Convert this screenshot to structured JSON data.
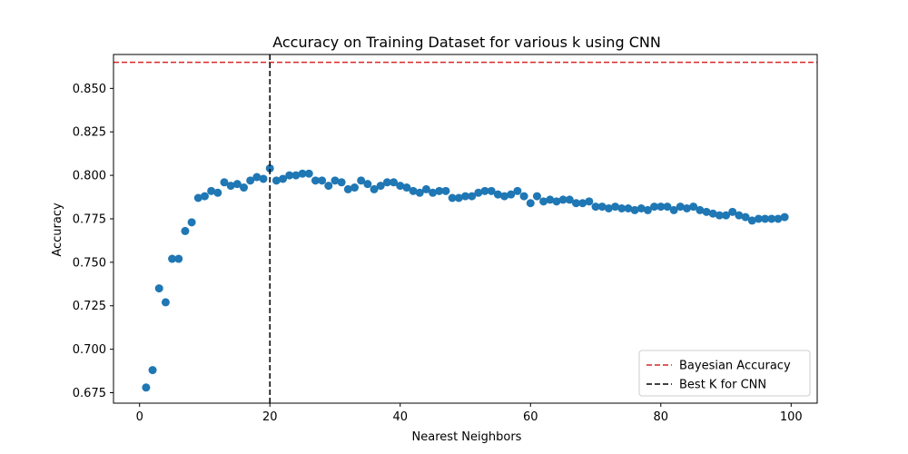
{
  "chart_data": {
    "type": "scatter",
    "title": "Accuracy on Training Dataset for various k using CNN",
    "xlabel": "Nearest Neighbors",
    "ylabel": "Accuracy",
    "xlim": [
      -4,
      104
    ],
    "ylim": [
      0.669,
      0.8695
    ],
    "xticks": [
      0,
      20,
      40,
      60,
      80,
      100
    ],
    "yticks": [
      0.675,
      0.7,
      0.725,
      0.75,
      0.775,
      0.8,
      0.825,
      0.85
    ],
    "ytick_labels": [
      "0.675",
      "0.700",
      "0.725",
      "0.750",
      "0.775",
      "0.800",
      "0.825",
      "0.850"
    ],
    "grid": false,
    "legend_position": "lower right",
    "series": [
      {
        "color": "#1f77b4",
        "x": [
          1,
          2,
          3,
          4,
          5,
          6,
          7,
          8,
          9,
          10,
          11,
          12,
          13,
          14,
          15,
          16,
          17,
          18,
          19,
          20,
          21,
          22,
          23,
          24,
          25,
          26,
          27,
          28,
          29,
          30,
          31,
          32,
          33,
          34,
          35,
          36,
          37,
          38,
          39,
          40,
          41,
          42,
          43,
          44,
          45,
          46,
          47,
          48,
          49,
          50,
          51,
          52,
          53,
          54,
          55,
          56,
          57,
          58,
          59,
          60,
          61,
          62,
          63,
          64,
          65,
          66,
          67,
          68,
          69,
          70,
          71,
          72,
          73,
          74,
          75,
          76,
          77,
          78,
          79,
          80,
          81,
          82,
          83,
          84,
          85,
          86,
          87,
          88,
          89,
          90,
          91,
          92,
          93,
          94,
          95,
          96,
          97,
          98,
          99
        ],
        "y": [
          0.678,
          0.688,
          0.735,
          0.727,
          0.752,
          0.752,
          0.768,
          0.773,
          0.787,
          0.788,
          0.791,
          0.79,
          0.796,
          0.794,
          0.795,
          0.793,
          0.797,
          0.799,
          0.798,
          0.804,
          0.797,
          0.798,
          0.8,
          0.8,
          0.801,
          0.801,
          0.797,
          0.797,
          0.794,
          0.797,
          0.796,
          0.792,
          0.793,
          0.797,
          0.795,
          0.792,
          0.794,
          0.796,
          0.796,
          0.794,
          0.793,
          0.791,
          0.79,
          0.792,
          0.79,
          0.791,
          0.791,
          0.787,
          0.787,
          0.788,
          0.788,
          0.79,
          0.791,
          0.791,
          0.789,
          0.788,
          0.789,
          0.791,
          0.788,
          0.784,
          0.788,
          0.785,
          0.786,
          0.785,
          0.786,
          0.786,
          0.784,
          0.784,
          0.785,
          0.782,
          0.782,
          0.781,
          0.782,
          0.781,
          0.781,
          0.78,
          0.781,
          0.78,
          0.782,
          0.782,
          0.782,
          0.78,
          0.782,
          0.781,
          0.782,
          0.78,
          0.779,
          0.778,
          0.777,
          0.777,
          0.779,
          0.777,
          0.776,
          0.774,
          0.775,
          0.775,
          0.775,
          0.775,
          0.776
        ]
      }
    ],
    "reference_lines": [
      {
        "orientation": "horizontal",
        "value": 0.865,
        "color": "#d62728",
        "style": "dashed",
        "label": "Bayesian Accuracy"
      },
      {
        "orientation": "vertical",
        "value": 20,
        "color": "#000000",
        "style": "dashed",
        "label": "Best K for CNN"
      }
    ]
  }
}
